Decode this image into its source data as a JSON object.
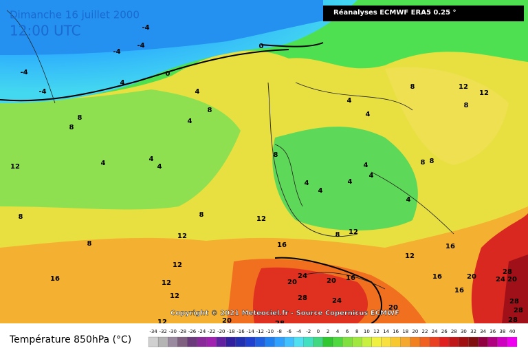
{
  "header": {
    "date": "Dimanche 16 juillet 2000",
    "time": "12:00 UTC",
    "source": "Réanalyses ECMWF ERA5 0.25 °"
  },
  "copyright": "Copyright © 2021 Meteociel.fr - Source Copernicus ECMWF",
  "contour_labels": [
    "-4",
    "-4",
    "-4",
    "-4",
    "-4",
    "0",
    "0",
    "4",
    "4",
    "4",
    "4",
    "4",
    "4",
    "8",
    "8",
    "8",
    "8",
    "8",
    "8",
    "8",
    "12",
    "12",
    "12",
    "12",
    "12",
    "12",
    "12",
    "12",
    "12",
    "16",
    "16",
    "16",
    "16",
    "16",
    "16",
    "20",
    "20",
    "20",
    "20",
    "20",
    "20",
    "24",
    "24",
    "24",
    "28",
    "28",
    "28",
    "28",
    "28",
    "28",
    "4",
    "4",
    "4",
    "4",
    "4",
    "8",
    "8",
    "8",
    "12",
    "12",
    "8",
    "8",
    "4",
    "4",
    "4"
  ],
  "legend": {
    "title": "Température 850hPa (°C)",
    "scale": [
      -34,
      -32,
      -30,
      -28,
      -26,
      -24,
      -22,
      -20,
      -18,
      -16,
      -14,
      -12,
      -10,
      -8,
      -6,
      -4,
      -2,
      0,
      2,
      4,
      6,
      8,
      10,
      12,
      14,
      16,
      18,
      20,
      22,
      24,
      26,
      28,
      30,
      32,
      34,
      36,
      38,
      40
    ]
  }
}
